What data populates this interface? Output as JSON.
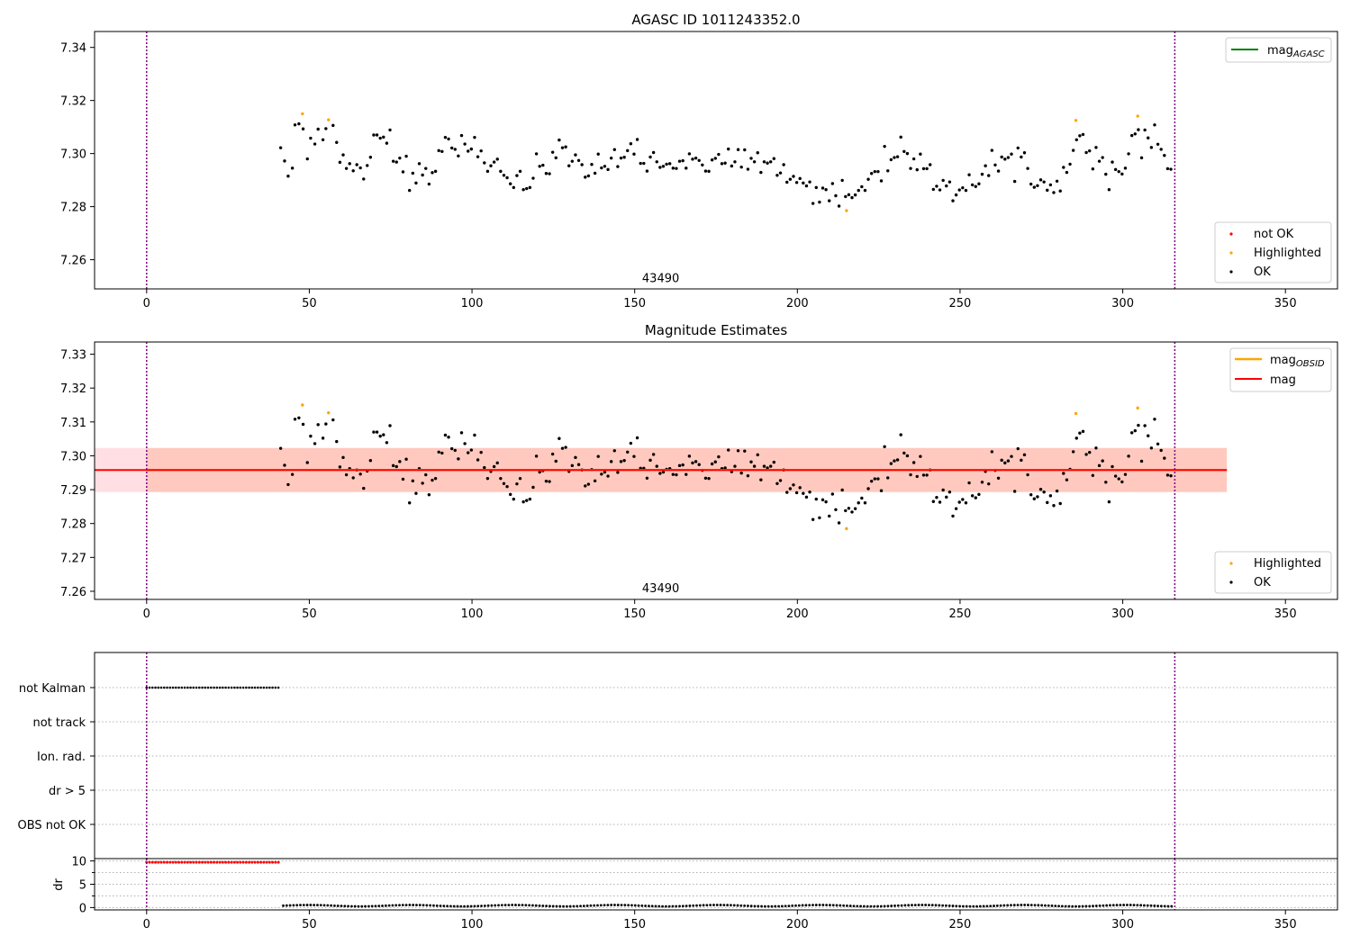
{
  "figure": {
    "background": "#ffffff"
  },
  "colors": {
    "ok": "#000000",
    "highlighted": "#ffa500",
    "not_ok": "#ff0000",
    "mag_agasc_line": "#008000",
    "mag_obsid_line": "#ffa500",
    "mag_line": "#ff0000",
    "obs_span": "#ffc0c8",
    "obsid_span": "#ffa07a",
    "vline": "#800080",
    "grid": "#b0b0b0"
  },
  "chart_data": [
    {
      "id": "panel1",
      "type": "scatter",
      "title": "AGASC ID 1011243352.0",
      "xlim": [
        -16,
        366
      ],
      "ylim": [
        7.249,
        7.346
      ],
      "xticks": [
        0,
        50,
        100,
        150,
        200,
        250,
        300,
        350
      ],
      "yticks": [
        7.26,
        7.28,
        7.3,
        7.32,
        7.34
      ],
      "ytick_labels": [
        "7.26",
        "7.28",
        "7.30",
        "7.32",
        "7.34"
      ],
      "vlines": [
        0,
        316
      ],
      "annotation": {
        "text": "43490",
        "x": 158,
        "y": 7.2515
      },
      "legend_top": [
        {
          "label": "mag",
          "subscript": "AGASC",
          "color": "#008000",
          "kind": "line"
        }
      ],
      "legend_bottom": [
        {
          "label": "not OK",
          "color": "#ff0000",
          "kind": "dot"
        },
        {
          "label": "Highlighted",
          "color": "#ffa500",
          "kind": "dot"
        },
        {
          "label": "OK",
          "color": "#000000",
          "kind": "dot"
        }
      ],
      "series": [
        {
          "name": "OK",
          "color": "#000000",
          "points": "ok"
        },
        {
          "name": "Highlighted",
          "color": "#ffa500",
          "points": "highlighted"
        }
      ]
    },
    {
      "id": "panel2",
      "type": "scatter",
      "title": "Magnitude Estimates",
      "xlim": [
        -16,
        366
      ],
      "ylim": [
        7.2576,
        7.3336
      ],
      "xticks": [
        0,
        50,
        100,
        150,
        200,
        250,
        300,
        350
      ],
      "yticks": [
        7.26,
        7.27,
        7.28,
        7.29,
        7.3,
        7.31,
        7.32,
        7.33
      ],
      "ytick_labels": [
        "7.26",
        "7.27",
        "7.28",
        "7.29",
        "7.30",
        "7.31",
        "7.32",
        "7.33"
      ],
      "vlines": [
        0,
        316
      ],
      "annotation": {
        "text": "43490",
        "x": 158,
        "y": 7.2597
      },
      "mag_value": 7.2958,
      "band_obs": {
        "x0": -16,
        "x1": 332,
        "y0": 7.2893,
        "y1": 7.3023
      },
      "band_obsid": {
        "x0": 0,
        "x1": 332,
        "y0": 7.2893,
        "y1": 7.3023
      },
      "legend_top": [
        {
          "label": "mag",
          "subscript": "OBSID",
          "color": "#ffa500",
          "kind": "line"
        },
        {
          "label": "mag",
          "subscript": "",
          "color": "#ff0000",
          "kind": "line"
        }
      ],
      "legend_bottom": [
        {
          "label": "Highlighted",
          "color": "#ffa500",
          "kind": "dot"
        },
        {
          "label": "OK",
          "color": "#000000",
          "kind": "dot"
        }
      ],
      "series": [
        {
          "name": "OK",
          "color": "#000000",
          "points": "ok"
        },
        {
          "name": "Highlighted",
          "color": "#ffa500",
          "points": "highlighted"
        }
      ]
    },
    {
      "id": "panel3",
      "type": "scatter",
      "categories": [
        "not Kalman",
        "not track",
        "Ion. rad.",
        "dr > 5",
        "OBS not OK"
      ],
      "xlim": [
        -16,
        366
      ],
      "vlines": [
        0,
        316
      ],
      "flags": {
        "not Kalman": {
          "x_start": 0,
          "x_end": 41,
          "step": 0.9
        }
      }
    },
    {
      "id": "panel4",
      "type": "scatter",
      "ylabel": "dr",
      "xlim": [
        -16,
        366
      ],
      "ylim": [
        -0.5,
        10.5
      ],
      "xticks": [
        0,
        50,
        100,
        150,
        200,
        250,
        300,
        350
      ],
      "yticks": [
        0,
        5,
        10
      ],
      "minor_yticks": [
        2.5,
        7.5
      ],
      "vlines": [
        0,
        316
      ],
      "dr_high": {
        "x_start": 0,
        "x_end": 41,
        "step": 0.9,
        "value": 9.7
      },
      "dr_low": {
        "x_start": 42,
        "x_end": 316,
        "step": 1.05,
        "value": 0.4
      }
    }
  ],
  "ok_points": [
    [
      41.2,
      7.3022
    ],
    [
      42.4,
      7.2972
    ],
    [
      43.5,
      7.2915
    ],
    [
      44.8,
      7.2945
    ],
    [
      45.6,
      7.3108
    ],
    [
      46.8,
      7.3112
    ],
    [
      48.1,
      7.3093
    ],
    [
      49.4,
      7.298
    ],
    [
      50.4,
      7.3058
    ],
    [
      51.7,
      7.3036
    ],
    [
      52.7,
      7.3092
    ],
    [
      54.2,
      7.3052
    ],
    [
      55.1,
      7.3094
    ],
    [
      57.3,
      7.3106
    ],
    [
      58.4,
      7.3042
    ],
    [
      59.4,
      7.2967
    ],
    [
      60.4,
      7.2995
    ],
    [
      61.4,
      7.2944
    ],
    [
      62.4,
      7.2962
    ],
    [
      63.5,
      7.2935
    ],
    [
      64.6,
      7.2958
    ],
    [
      65.7,
      7.2946
    ],
    [
      66.7,
      7.2904
    ],
    [
      67.8,
      7.2955
    ],
    [
      68.8,
      7.2986
    ],
    [
      69.8,
      7.307
    ],
    [
      70.8,
      7.307
    ],
    [
      71.8,
      7.3058
    ],
    [
      72.8,
      7.3062
    ],
    [
      73.8,
      7.3039
    ],
    [
      74.8,
      7.3089
    ],
    [
      75.8,
      7.2971
    ],
    [
      76.8,
      7.2968
    ],
    [
      77.8,
      7.2983
    ],
    [
      78.8,
      7.2931
    ],
    [
      79.8,
      7.299
    ],
    [
      80.8,
      7.2861
    ],
    [
      81.8,
      7.2926
    ],
    [
      82.8,
      7.2889
    ],
    [
      83.8,
      7.2962
    ],
    [
      84.8,
      7.2919
    ],
    [
      85.8,
      7.2944
    ],
    [
      86.8,
      7.2885
    ],
    [
      87.8,
      7.2928
    ],
    [
      88.8,
      7.2933
    ],
    [
      89.8,
      7.3011
    ],
    [
      90.8,
      7.3008
    ],
    [
      91.8,
      7.3061
    ],
    [
      92.8,
      7.3055
    ],
    [
      93.8,
      7.3021
    ],
    [
      94.8,
      7.3016
    ],
    [
      95.8,
      7.2991
    ],
    [
      96.8,
      7.3068
    ],
    [
      97.8,
      7.3036
    ],
    [
      98.8,
      7.3009
    ],
    [
      99.8,
      7.3017
    ],
    [
      100.8,
      7.3061
    ],
    [
      101.8,
      7.2988
    ],
    [
      102.8,
      7.301
    ],
    [
      103.8,
      7.2965
    ],
    [
      104.8,
      7.2933
    ],
    [
      105.8,
      7.2954
    ],
    [
      106.8,
      7.2968
    ],
    [
      107.8,
      7.2979
    ],
    [
      108.8,
      7.2933
    ],
    [
      109.8,
      7.2918
    ],
    [
      110.8,
      7.2909
    ],
    [
      111.8,
      7.2886
    ],
    [
      112.8,
      7.2872
    ],
    [
      113.8,
      7.2917
    ],
    [
      114.8,
      7.2933
    ],
    [
      115.8,
      7.2864
    ],
    [
      116.8,
      7.2868
    ],
    [
      117.8,
      7.2872
    ],
    [
      118.8,
      7.2907
    ],
    [
      119.8,
      7.2999
    ],
    [
      120.8,
      7.2952
    ],
    [
      121.8,
      7.2956
    ],
    [
      122.8,
      7.2925
    ],
    [
      123.8,
      7.2924
    ],
    [
      124.8,
      7.3005
    ],
    [
      125.8,
      7.2984
    ],
    [
      126.8,
      7.3051
    ],
    [
      127.8,
      7.3022
    ],
    [
      128.8,
      7.3025
    ],
    [
      129.8,
      7.2954
    ],
    [
      130.8,
      7.2971
    ],
    [
      131.8,
      7.2995
    ],
    [
      132.8,
      7.2974
    ],
    [
      133.8,
      7.2958
    ],
    [
      134.8,
      7.2911
    ],
    [
      135.8,
      7.2916
    ],
    [
      136.8,
      7.2959
    ],
    [
      137.8,
      7.2926
    ],
    [
      138.8,
      7.2998
    ],
    [
      139.8,
      7.2946
    ],
    [
      140.8,
      7.2952
    ],
    [
      141.8,
      7.294
    ],
    [
      142.8,
      7.2983
    ],
    [
      143.8,
      7.3015
    ],
    [
      144.8,
      7.2951
    ],
    [
      145.8,
      7.2983
    ],
    [
      146.8,
      7.2986
    ],
    [
      147.8,
      7.3011
    ],
    [
      148.8,
      7.3037
    ],
    [
      149.8,
      7.2998
    ],
    [
      150.8,
      7.3053
    ],
    [
      151.8,
      7.2963
    ],
    [
      152.8,
      7.2963
    ],
    [
      153.8,
      7.2934
    ],
    [
      154.8,
      7.2987
    ],
    [
      155.8,
      7.3004
    ],
    [
      156.8,
      7.2969
    ],
    [
      157.8,
      7.2948
    ],
    [
      158.8,
      7.2952
    ],
    [
      159.8,
      7.296
    ],
    [
      160.8,
      7.2962
    ],
    [
      161.8,
      7.2945
    ],
    [
      162.8,
      7.2944
    ],
    [
      163.8,
      7.2971
    ],
    [
      164.8,
      7.2973
    ],
    [
      165.8,
      7.2945
    ],
    [
      166.8,
      7.2999
    ],
    [
      167.8,
      7.2979
    ],
    [
      168.8,
      7.2983
    ],
    [
      169.8,
      7.2974
    ],
    [
      170.8,
      7.2957
    ],
    [
      171.8,
      7.2934
    ],
    [
      172.8,
      7.2933
    ],
    [
      173.8,
      7.2976
    ],
    [
      174.8,
      7.2982
    ],
    [
      175.8,
      7.2997
    ],
    [
      176.8,
      7.2962
    ],
    [
      177.8,
      7.2964
    ],
    [
      178.8,
      7.3017
    ],
    [
      179.8,
      7.2953
    ],
    [
      180.8,
      7.2969
    ],
    [
      181.8,
      7.3015
    ],
    [
      182.8,
      7.2949
    ],
    [
      183.8,
      7.3014
    ],
    [
      184.8,
      7.2941
    ],
    [
      185.8,
      7.2982
    ],
    [
      186.8,
      7.2969
    ],
    [
      187.8,
      7.3003
    ],
    [
      188.8,
      7.2929
    ],
    [
      189.8,
      7.2969
    ],
    [
      190.8,
      7.2964
    ],
    [
      191.8,
      7.2969
    ],
    [
      192.8,
      7.2981
    ],
    [
      193.8,
      7.2918
    ],
    [
      194.8,
      7.2927
    ],
    [
      195.8,
      7.2958
    ],
    [
      196.8,
      7.2892
    ],
    [
      197.8,
      7.2903
    ],
    [
      198.8,
      7.2914
    ],
    [
      199.8,
      7.2891
    ],
    [
      200.8,
      7.2906
    ],
    [
      201.8,
      7.2889
    ],
    [
      202.8,
      7.2878
    ],
    [
      203.8,
      7.2893
    ],
    [
      204.8,
      7.2812
    ],
    [
      205.8,
      7.2872
    ],
    [
      206.8,
      7.2817
    ],
    [
      207.8,
      7.287
    ],
    [
      208.8,
      7.2864
    ],
    [
      209.8,
      7.2822
    ],
    [
      210.8,
      7.2887
    ],
    [
      211.8,
      7.2841
    ],
    [
      212.8,
      7.2802
    ],
    [
      213.8,
      7.2899
    ],
    [
      214.8,
      7.2838
    ],
    [
      215.8,
      7.2845
    ],
    [
      216.8,
      7.2834
    ],
    [
      217.8,
      7.2844
    ],
    [
      218.8,
      7.2861
    ],
    [
      219.8,
      7.2875
    ],
    [
      220.8,
      7.2861
    ],
    [
      221.8,
      7.2903
    ],
    [
      222.8,
      7.2925
    ],
    [
      223.8,
      7.2932
    ],
    [
      224.8,
      7.2932
    ],
    [
      225.8,
      7.2897
    ],
    [
      226.8,
      7.3027
    ],
    [
      227.8,
      7.2935
    ],
    [
      228.8,
      7.2977
    ],
    [
      229.8,
      7.2985
    ],
    [
      230.8,
      7.2988
    ],
    [
      231.8,
      7.3062
    ],
    [
      232.8,
      7.3008
    ],
    [
      233.8,
      7.3
    ],
    [
      234.8,
      7.2944
    ],
    [
      235.8,
      7.298
    ],
    [
      236.8,
      7.2939
    ],
    [
      237.8,
      7.2998
    ],
    [
      238.8,
      7.2943
    ],
    [
      239.8,
      7.2943
    ],
    [
      240.8,
      7.2958
    ],
    [
      241.8,
      7.2865
    ],
    [
      242.8,
      7.2877
    ],
    [
      243.8,
      7.2863
    ],
    [
      244.8,
      7.2899
    ],
    [
      245.8,
      7.2878
    ],
    [
      246.8,
      7.2893
    ],
    [
      247.8,
      7.2822
    ],
    [
      248.8,
      7.2844
    ],
    [
      249.8,
      7.2863
    ],
    [
      250.8,
      7.2871
    ],
    [
      251.8,
      7.2861
    ],
    [
      252.8,
      7.292
    ],
    [
      253.8,
      7.2882
    ],
    [
      254.8,
      7.2876
    ],
    [
      255.8,
      7.2886
    ],
    [
      256.8,
      7.2922
    ],
    [
      257.8,
      7.2954
    ],
    [
      258.8,
      7.2917
    ],
    [
      259.8,
      7.3012
    ],
    [
      260.8,
      7.2957
    ],
    [
      261.8,
      7.2934
    ],
    [
      262.8,
      7.2987
    ],
    [
      263.8,
      7.2979
    ],
    [
      264.8,
      7.2985
    ],
    [
      265.8,
      7.2998
    ],
    [
      266.8,
      7.2895
    ],
    [
      267.8,
      7.3021
    ],
    [
      268.8,
      7.2987
    ],
    [
      269.8,
      7.3003
    ],
    [
      270.8,
      7.2944
    ],
    [
      271.8,
      7.2885
    ],
    [
      272.8,
      7.2873
    ],
    [
      273.8,
      7.2879
    ],
    [
      274.8,
      7.2901
    ],
    [
      275.8,
      7.2893
    ],
    [
      276.8,
      7.2862
    ],
    [
      277.8,
      7.2882
    ],
    [
      278.8,
      7.2853
    ],
    [
      279.8,
      7.2896
    ],
    [
      280.8,
      7.2859
    ],
    [
      281.8,
      7.2948
    ],
    [
      282.8,
      7.2929
    ],
    [
      283.8,
      7.296
    ],
    [
      284.8,
      7.3012
    ],
    [
      285.8,
      7.3052
    ],
    [
      286.8,
      7.3067
    ],
    [
      287.8,
      7.3072
    ],
    [
      288.8,
      7.3004
    ],
    [
      289.8,
      7.301
    ],
    [
      290.8,
      7.2942
    ],
    [
      291.8,
      7.3023
    ],
    [
      292.8,
      7.2971
    ],
    [
      293.8,
      7.2985
    ],
    [
      294.8,
      7.2922
    ],
    [
      295.8,
      7.2864
    ],
    [
      296.8,
      7.2968
    ],
    [
      297.8,
      7.294
    ],
    [
      298.8,
      7.2932
    ],
    [
      299.8,
      7.2923
    ],
    [
      300.8,
      7.2945
    ],
    [
      301.8,
      7.2999
    ],
    [
      302.8,
      7.3068
    ],
    [
      303.8,
      7.3074
    ],
    [
      304.8,
      7.309
    ],
    [
      305.8,
      7.2984
    ],
    [
      306.8,
      7.3089
    ],
    [
      307.8,
      7.3059
    ],
    [
      308.8,
      7.3023
    ],
    [
      309.8,
      7.3108
    ],
    [
      310.8,
      7.3035
    ],
    [
      311.8,
      7.3016
    ],
    [
      312.8,
      7.2993
    ],
    [
      313.8,
      7.2943
    ],
    [
      314.8,
      7.2941
    ]
  ],
  "highlighted_points": [
    [
      47.9,
      7.315
    ],
    [
      55.9,
      7.3127
    ],
    [
      215.1,
      7.2785
    ],
    [
      285.6,
      7.3125
    ],
    [
      304.6,
      7.3141
    ]
  ]
}
